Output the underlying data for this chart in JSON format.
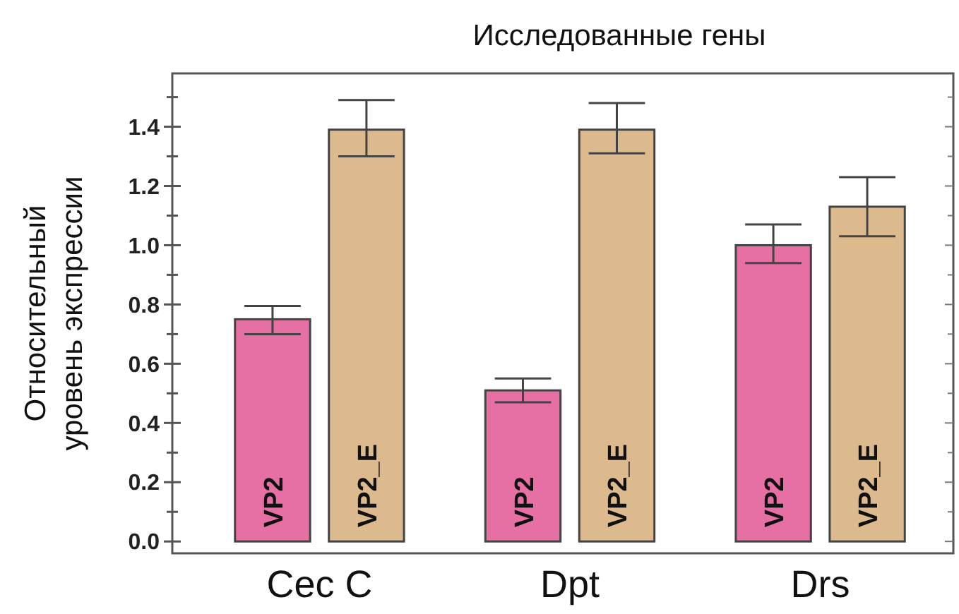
{
  "chart_data": {
    "type": "bar",
    "title": "Исследованные гены",
    "ylabel": "Относительный уровень экспрессии",
    "categories": [
      "Cec C",
      "Dpt",
      "Drs"
    ],
    "series": [
      {
        "name": "VP2",
        "color": "#e66fa3",
        "values": [
          0.75,
          0.51,
          1.0
        ],
        "errors": [
          [
            0.7,
            0.795
          ],
          [
            0.47,
            0.55
          ],
          [
            0.94,
            1.07
          ]
        ]
      },
      {
        "name": "VP2_E",
        "color": "#ddb98e",
        "values": [
          1.39,
          1.39,
          1.13
        ],
        "errors": [
          [
            1.3,
            1.49
          ],
          [
            1.31,
            1.48
          ],
          [
            1.03,
            1.23
          ]
        ]
      }
    ],
    "ylim": [
      -0.04,
      1.58
    ],
    "yticks": [
      {
        "value": 0,
        "label": "0.0"
      },
      {
        "value": 0.1,
        "label": null
      },
      {
        "value": 0.2,
        "label": "0.2"
      },
      {
        "value": 0.3,
        "label": null
      },
      {
        "value": 0.4,
        "label": "0.4"
      },
      {
        "value": 0.5,
        "label": null
      },
      {
        "value": 0.6,
        "label": "0.6"
      },
      {
        "value": 0.7,
        "label": null
      },
      {
        "value": 0.8,
        "label": "0.8"
      },
      {
        "value": 0.9,
        "label": null
      },
      {
        "value": 1,
        "label": "1.0"
      },
      {
        "value": 1.1,
        "label": null
      },
      {
        "value": 1.2,
        "label": "1.2"
      },
      {
        "value": 1.3,
        "label": null
      },
      {
        "value": 1.4,
        "label": "1.4"
      },
      {
        "value": 1.5,
        "label": null
      }
    ],
    "grid": false
  }
}
